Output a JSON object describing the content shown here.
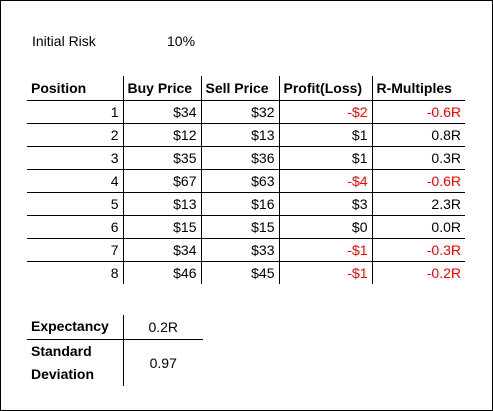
{
  "initial_risk": {
    "label": "Initial Risk",
    "value": "10%"
  },
  "table": {
    "headers": [
      "Position",
      "Buy Price",
      "Sell Price",
      "Profit(Loss)",
      "R-Multiples"
    ],
    "rows": [
      {
        "position": "1",
        "buy": "$34",
        "sell": "$32",
        "profit": "-$2",
        "r": "-0.6R",
        "negative": true
      },
      {
        "position": "2",
        "buy": "$12",
        "sell": "$13",
        "profit": "$1",
        "r": "0.8R",
        "negative": false
      },
      {
        "position": "3",
        "buy": "$35",
        "sell": "$36",
        "profit": "$1",
        "r": "0.3R",
        "negative": false
      },
      {
        "position": "4",
        "buy": "$67",
        "sell": "$63",
        "profit": "-$4",
        "r": "-0.6R",
        "negative": true
      },
      {
        "position": "5",
        "buy": "$13",
        "sell": "$16",
        "profit": "$3",
        "r": "2.3R",
        "negative": false
      },
      {
        "position": "6",
        "buy": "$15",
        "sell": "$15",
        "profit": "$0",
        "r": "0.0R",
        "negative": false
      },
      {
        "position": "7",
        "buy": "$34",
        "sell": "$33",
        "profit": "-$1",
        "r": "-0.3R",
        "negative": true
      },
      {
        "position": "8",
        "buy": "$46",
        "sell": "$45",
        "profit": "-$1",
        "r": "-0.2R",
        "negative": true
      }
    ]
  },
  "stats": {
    "expectancy": {
      "label": "Expectancy",
      "value": "0.2R"
    },
    "std_dev": {
      "label_line1": "Standard",
      "label_line2": "Deviation",
      "value": "0.97"
    }
  },
  "colors": {
    "negative": "#ff0000",
    "text": "#000000",
    "border": "#000000"
  }
}
